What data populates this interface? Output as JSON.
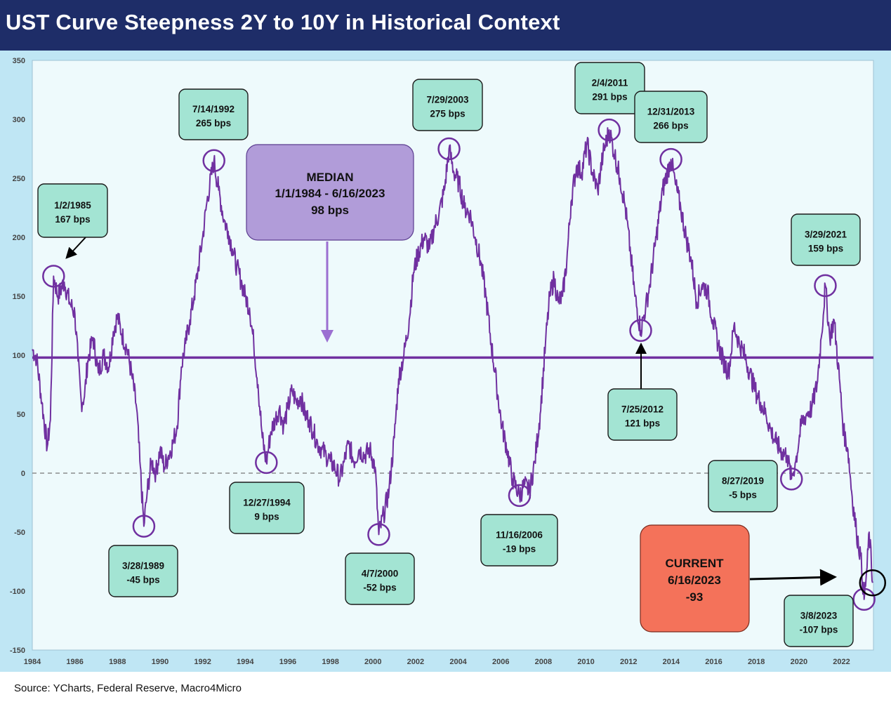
{
  "title": "UST Curve Steepness 2Y to 10Y in Historical Context",
  "source": "Source: YCharts, Federal Reserve, Macro4Micro",
  "colors": {
    "header": "#1e2d68",
    "line": "#7030a0",
    "callout_fill": "#a3e4d3",
    "median_box": "#b19cd9",
    "current_box": "#f4725a",
    "plot_bg": "#eefafc",
    "frame_bg": "#bfe6f4"
  },
  "chart_data": {
    "type": "line",
    "title": "UST Curve Steepness 2Y to 10Y in Historical Context",
    "xlabel": "",
    "ylabel": "",
    "xlim": [
      1984,
      2023.5
    ],
    "ylim": [
      -150,
      350
    ],
    "x_ticks": [
      "1984",
      "1986",
      "1988",
      "1990",
      "1992",
      "1994",
      "1996",
      "1998",
      "2000",
      "2002",
      "2004",
      "2006",
      "2008",
      "2010",
      "2012",
      "2014",
      "2016",
      "2018",
      "2020",
      "2022"
    ],
    "y_ticks": [
      "350",
      "300",
      "250",
      "200",
      "150",
      "100",
      "50",
      "0",
      "-50",
      "-100",
      "-150"
    ],
    "grid": false,
    "median_line": 98,
    "zero_line": 0,
    "series": [
      {
        "points": [
          [
            1984.0,
            105
          ],
          [
            1984.2,
            98
          ],
          [
            1984.45,
            60
          ],
          [
            1984.7,
            22
          ],
          [
            1984.85,
            45
          ],
          [
            1985.0,
            167
          ],
          [
            1985.2,
            150
          ],
          [
            1985.5,
            162
          ],
          [
            1985.75,
            145
          ],
          [
            1986.0,
            135
          ],
          [
            1986.15,
            95
          ],
          [
            1986.3,
            60
          ],
          [
            1986.45,
            65
          ],
          [
            1986.6,
            95
          ],
          [
            1986.85,
            115
          ],
          [
            1987.1,
            85
          ],
          [
            1987.35,
            100
          ],
          [
            1987.6,
            90
          ],
          [
            1987.8,
            120
          ],
          [
            1988.0,
            133
          ],
          [
            1988.2,
            118
          ],
          [
            1988.45,
            105
          ],
          [
            1988.7,
            80
          ],
          [
            1988.9,
            55
          ],
          [
            1989.05,
            10
          ],
          [
            1989.24,
            -45
          ],
          [
            1989.4,
            -15
          ],
          [
            1989.6,
            10
          ],
          [
            1989.8,
            0
          ],
          [
            1990.0,
            20
          ],
          [
            1990.2,
            5
          ],
          [
            1990.4,
            15
          ],
          [
            1990.6,
            25
          ],
          [
            1990.8,
            40
          ],
          [
            1991.0,
            90
          ],
          [
            1991.2,
            110
          ],
          [
            1991.4,
            130
          ],
          [
            1991.6,
            150
          ],
          [
            1991.8,
            175
          ],
          [
            1992.0,
            200
          ],
          [
            1992.2,
            230
          ],
          [
            1992.53,
            265
          ],
          [
            1992.75,
            240
          ],
          [
            1993.0,
            215
          ],
          [
            1993.2,
            205
          ],
          [
            1993.4,
            190
          ],
          [
            1993.6,
            175
          ],
          [
            1993.85,
            160
          ],
          [
            1994.0,
            150
          ],
          [
            1994.2,
            140
          ],
          [
            1994.4,
            110
          ],
          [
            1994.6,
            75
          ],
          [
            1994.8,
            30
          ],
          [
            1994.99,
            9
          ],
          [
            1995.2,
            35
          ],
          [
            1995.4,
            45
          ],
          [
            1995.6,
            55
          ],
          [
            1995.8,
            40
          ],
          [
            1996.0,
            55
          ],
          [
            1996.2,
            70
          ],
          [
            1996.4,
            60
          ],
          [
            1996.6,
            65
          ],
          [
            1996.8,
            50
          ],
          [
            1997.0,
            45
          ],
          [
            1997.2,
            35
          ],
          [
            1997.4,
            25
          ],
          [
            1997.6,
            20
          ],
          [
            1997.8,
            15
          ],
          [
            1998.0,
            10
          ],
          [
            1998.2,
            5
          ],
          [
            1998.45,
            -5
          ],
          [
            1998.65,
            10
          ],
          [
            1998.85,
            25
          ],
          [
            1999.1,
            10
          ],
          [
            1999.35,
            20
          ],
          [
            1999.6,
            15
          ],
          [
            1999.85,
            20
          ],
          [
            2000.1,
            5
          ],
          [
            2000.27,
            -52
          ],
          [
            2000.5,
            -35
          ],
          [
            2000.75,
            -15
          ],
          [
            2001.0,
            30
          ],
          [
            2001.2,
            80
          ],
          [
            2001.45,
            100
          ],
          [
            2001.7,
            130
          ],
          [
            2001.9,
            170
          ],
          [
            2002.1,
            185
          ],
          [
            2002.4,
            200
          ],
          [
            2002.65,
            190
          ],
          [
            2002.9,
            210
          ],
          [
            2003.1,
            220
          ],
          [
            2003.35,
            240
          ],
          [
            2003.57,
            275
          ],
          [
            2003.8,
            255
          ],
          [
            2004.05,
            245
          ],
          [
            2004.3,
            225
          ],
          [
            2004.55,
            220
          ],
          [
            2004.8,
            200
          ],
          [
            2005.05,
            180
          ],
          [
            2005.3,
            150
          ],
          [
            2005.55,
            110
          ],
          [
            2005.8,
            75
          ],
          [
            2006.05,
            40
          ],
          [
            2006.3,
            20
          ],
          [
            2006.55,
            -5
          ],
          [
            2006.88,
            -19
          ],
          [
            2007.1,
            -10
          ],
          [
            2007.35,
            -15
          ],
          [
            2007.6,
            10
          ],
          [
            2007.85,
            50
          ],
          [
            2008.1,
            110
          ],
          [
            2008.3,
            150
          ],
          [
            2008.5,
            165
          ],
          [
            2008.7,
            145
          ],
          [
            2008.9,
            150
          ],
          [
            2009.1,
            180
          ],
          [
            2009.3,
            230
          ],
          [
            2009.55,
            260
          ],
          [
            2009.8,
            255
          ],
          [
            2010.05,
            280
          ],
          [
            2010.3,
            255
          ],
          [
            2010.55,
            240
          ],
          [
            2010.8,
            270
          ],
          [
            2011.09,
            291
          ],
          [
            2011.35,
            270
          ],
          [
            2011.6,
            250
          ],
          [
            2011.85,
            225
          ],
          [
            2012.1,
            185
          ],
          [
            2012.3,
            150
          ],
          [
            2012.57,
            121
          ],
          [
            2012.8,
            140
          ],
          [
            2013.0,
            160
          ],
          [
            2013.3,
            200
          ],
          [
            2013.6,
            240
          ],
          [
            2013.99,
            266
          ],
          [
            2014.2,
            245
          ],
          [
            2014.45,
            225
          ],
          [
            2014.7,
            200
          ],
          [
            2014.95,
            180
          ],
          [
            2015.2,
            145
          ],
          [
            2015.45,
            160
          ],
          [
            2015.7,
            155
          ],
          [
            2015.95,
            130
          ],
          [
            2016.2,
            110
          ],
          [
            2016.45,
            95
          ],
          [
            2016.7,
            85
          ],
          [
            2016.95,
            125
          ],
          [
            2017.2,
            110
          ],
          [
            2017.45,
            100
          ],
          [
            2017.7,
            85
          ],
          [
            2017.95,
            70
          ],
          [
            2018.2,
            60
          ],
          [
            2018.45,
            50
          ],
          [
            2018.7,
            35
          ],
          [
            2018.95,
            25
          ],
          [
            2019.2,
            18
          ],
          [
            2019.45,
            15
          ],
          [
            2019.65,
            -5
          ],
          [
            2019.85,
            10
          ],
          [
            2020.1,
            40
          ],
          [
            2020.35,
            50
          ],
          [
            2020.6,
            55
          ],
          [
            2020.85,
            75
          ],
          [
            2021.05,
            115
          ],
          [
            2021.24,
            159
          ],
          [
            2021.45,
            115
          ],
          [
            2021.65,
            130
          ],
          [
            2021.9,
            80
          ],
          [
            2022.1,
            35
          ],
          [
            2022.3,
            20
          ],
          [
            2022.5,
            -20
          ],
          [
            2022.7,
            -50
          ],
          [
            2022.9,
            -70
          ],
          [
            2023.06,
            -107
          ],
          [
            2023.2,
            -80
          ],
          [
            2023.3,
            -50
          ],
          [
            2023.46,
            -93
          ]
        ]
      }
    ]
  },
  "callouts": [
    {
      "id": "1985",
      "l1": "1/2/1985",
      "l2": "167 bps"
    },
    {
      "id": "1992",
      "l1": "7/14/1992",
      "l2": "265 bps"
    },
    {
      "id": "1989",
      "l1": "3/28/1989",
      "l2": "-45 bps"
    },
    {
      "id": "1994",
      "l1": "12/27/1994",
      "l2": "9 bps"
    },
    {
      "id": "2000",
      "l1": "4/7/2000",
      "l2": "-52 bps"
    },
    {
      "id": "2003",
      "l1": "7/29/2003",
      "l2": "275 bps"
    },
    {
      "id": "2006",
      "l1": "11/16/2006",
      "l2": "-19 bps"
    },
    {
      "id": "2011",
      "l1": "2/4/2011",
      "l2": "291 bps"
    },
    {
      "id": "2013",
      "l1": "12/31/2013",
      "l2": "266 bps"
    },
    {
      "id": "2012",
      "l1": "7/25/2012",
      "l2": "121 bps"
    },
    {
      "id": "2019",
      "l1": "8/27/2019",
      "l2": "-5 bps"
    },
    {
      "id": "2021",
      "l1": "3/29/2021",
      "l2": "159 bps"
    },
    {
      "id": "2023",
      "l1": "3/8/2023",
      "l2": "-107 bps"
    }
  ],
  "median_box": {
    "l1": "MEDIAN",
    "l2": "1/1/1984 - 6/16/2023",
    "l3": "98 bps"
  },
  "current_box": {
    "l1": "CURRENT",
    "l2": "6/16/2023",
    "l3": "-93"
  }
}
